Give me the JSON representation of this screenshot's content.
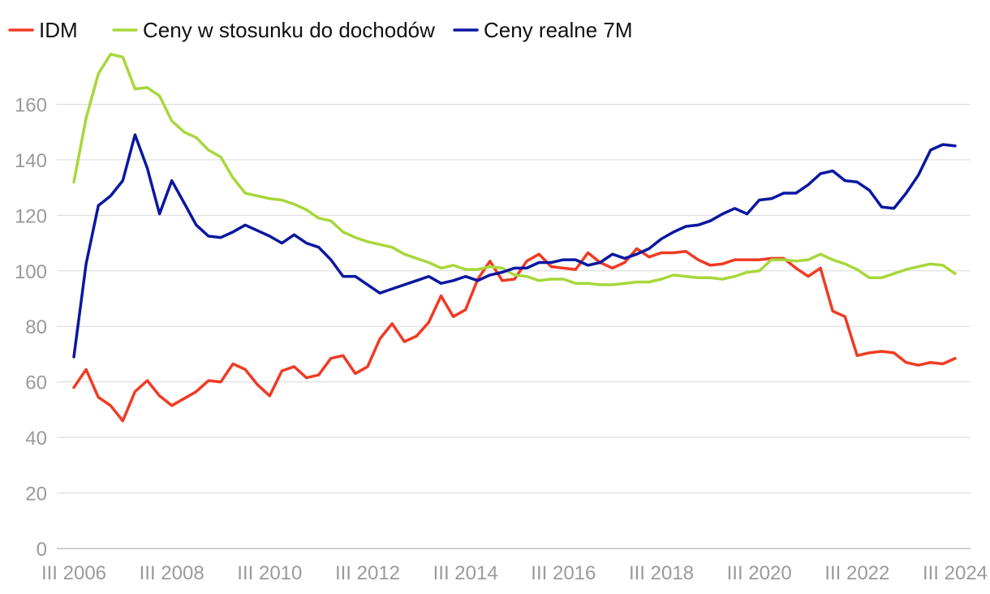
{
  "chart_data": {
    "type": "line",
    "title": "",
    "xlabel": "",
    "ylabel": "",
    "ylim": [
      0,
      180
    ],
    "yticks": [
      0,
      20,
      40,
      60,
      80,
      100,
      120,
      140,
      160
    ],
    "grid": true,
    "legend_position": "top-left",
    "x_ticks": [
      "III 2006",
      "III 2008",
      "III 2010",
      "III 2012",
      "III 2014",
      "III 2016",
      "III 2018",
      "III 2020",
      "III 2022",
      "III 2024"
    ],
    "x_count": 73,
    "series": [
      {
        "name": "IDM",
        "color": "#ef3b24",
        "values": [
          58,
          64.5,
          54.5,
          51.5,
          46,
          56.5,
          60.5,
          55,
          51.5,
          54,
          56.5,
          60.5,
          60,
          66.5,
          64.5,
          59,
          55,
          64,
          65.5,
          61.5,
          62.5,
          68.5,
          69.5,
          63,
          65.5,
          75.5,
          81,
          74.5,
          76.5,
          81.5,
          91,
          83.5,
          86,
          97,
          103.5,
          96.5,
          97,
          103.5,
          106,
          101.5,
          101,
          100.5,
          106.5,
          103,
          101,
          103,
          108,
          105,
          106.5,
          106.5,
          107,
          104,
          102,
          102.5,
          104,
          104,
          104,
          104.5,
          104.5,
          101,
          98,
          101,
          85.5,
          83.5,
          69.5,
          70.5,
          71,
          70.5,
          67,
          66,
          67,
          66.5,
          68.5
        ]
      },
      {
        "name": "Ceny w stosunku do dochodów",
        "color": "#a8d73a",
        "values": [
          132,
          155,
          171,
          178,
          177,
          165.5,
          166,
          163,
          154,
          150,
          148,
          143.5,
          141,
          133.5,
          128,
          127,
          126,
          125.5,
          124,
          122,
          119,
          118,
          114,
          112,
          110.5,
          109.5,
          108.5,
          106,
          104.5,
          103,
          101,
          102,
          100.5,
          100.5,
          101.5,
          101,
          98.5,
          98,
          96.5,
          97,
          97,
          95.5,
          95.5,
          95,
          95,
          95.5,
          96,
          96,
          97,
          98.5,
          98,
          97.5,
          97.5,
          97,
          98,
          99.5,
          100,
          104,
          104,
          103.5,
          104,
          106,
          104,
          102.5,
          100.5,
          97.5,
          97.5,
          99,
          100.5,
          101.5,
          102.5,
          102,
          99
        ]
      },
      {
        "name": "Ceny realne 7M",
        "color": "#0a17a0",
        "values": [
          69,
          102.5,
          123.5,
          127,
          132.5,
          149,
          137,
          120.5,
          132.5,
          124.5,
          116.5,
          112.5,
          112,
          114,
          116.5,
          114.5,
          112.5,
          110,
          113,
          110,
          108.5,
          104,
          98,
          98,
          95,
          92,
          93.5,
          95,
          96.5,
          98,
          95.5,
          96.5,
          98,
          96.5,
          98.5,
          99.5,
          101,
          101,
          103,
          103,
          104,
          104,
          102,
          103,
          106,
          104.5,
          106,
          108,
          111.5,
          114,
          116,
          116.5,
          118,
          120.5,
          122.5,
          120.5,
          125.5,
          126,
          128,
          128,
          131,
          135,
          136,
          132.5,
          132,
          129,
          123,
          122.5,
          128,
          134.5,
          143.5,
          145.5,
          145
        ]
      }
    ]
  }
}
